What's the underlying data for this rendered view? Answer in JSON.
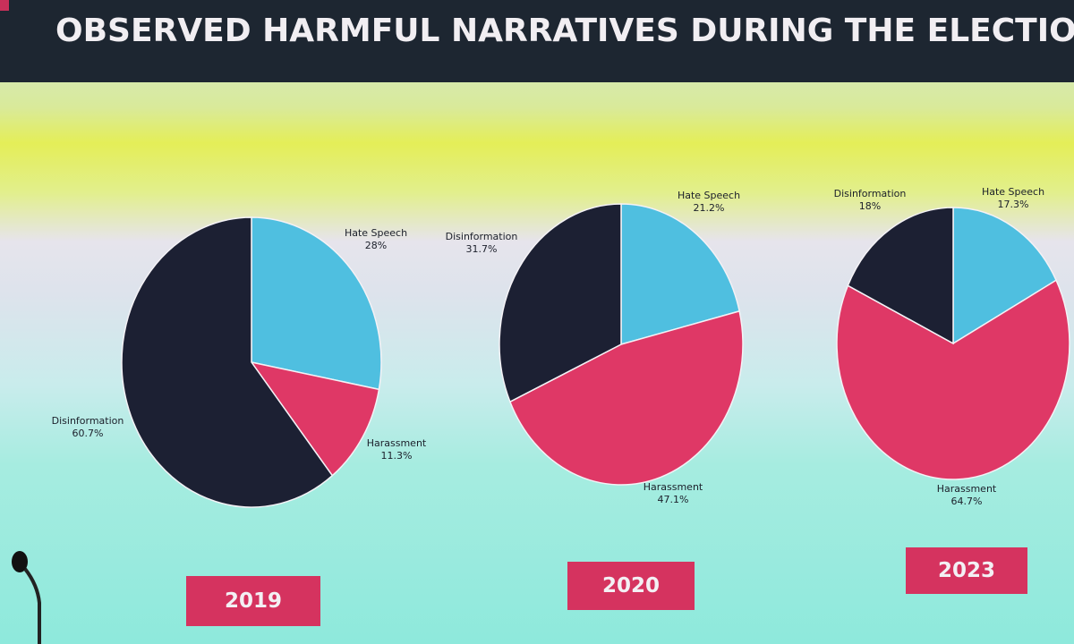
{
  "title": "OBSERVED HARMFUL NARRATIVES DURING THE ELECTIONS",
  "colors": {
    "disinformation": "#1c2033",
    "hate_speech": "#4fbfe0",
    "harassment": "#df3866",
    "label_bg": "#d5335f"
  },
  "chart_data": [
    {
      "type": "pie",
      "title": "2019",
      "slices": [
        {
          "label": "Hate Speech",
          "display": "28%",
          "value": 28.0,
          "color_key": "hate_speech"
        },
        {
          "label": "Harassment",
          "display": "11.3%",
          "value": 11.3,
          "color_key": "harassment"
        },
        {
          "label": "Disinformation",
          "display": "60.7%",
          "value": 60.7,
          "color_key": "disinformation"
        }
      ]
    },
    {
      "type": "pie",
      "title": "2020",
      "slices": [
        {
          "label": "Hate Speech",
          "display": "21.2%",
          "value": 21.2,
          "color_key": "hate_speech"
        },
        {
          "label": "Harassment",
          "display": "47.1%",
          "value": 47.1,
          "color_key": "harassment"
        },
        {
          "label": "Disinformation",
          "display": "31.7%",
          "value": 31.7,
          "color_key": "disinformation"
        }
      ]
    },
    {
      "type": "pie",
      "title": "2023",
      "slices": [
        {
          "label": "Hate Speech",
          "display": "17.3%",
          "value": 17.3,
          "color_key": "hate_speech"
        },
        {
          "label": "Harassment",
          "display": "64.7%",
          "value": 64.7,
          "color_key": "harassment"
        },
        {
          "label": "Disinformation",
          "display": "18%",
          "value": 18.0,
          "color_key": "disinformation"
        }
      ]
    }
  ]
}
